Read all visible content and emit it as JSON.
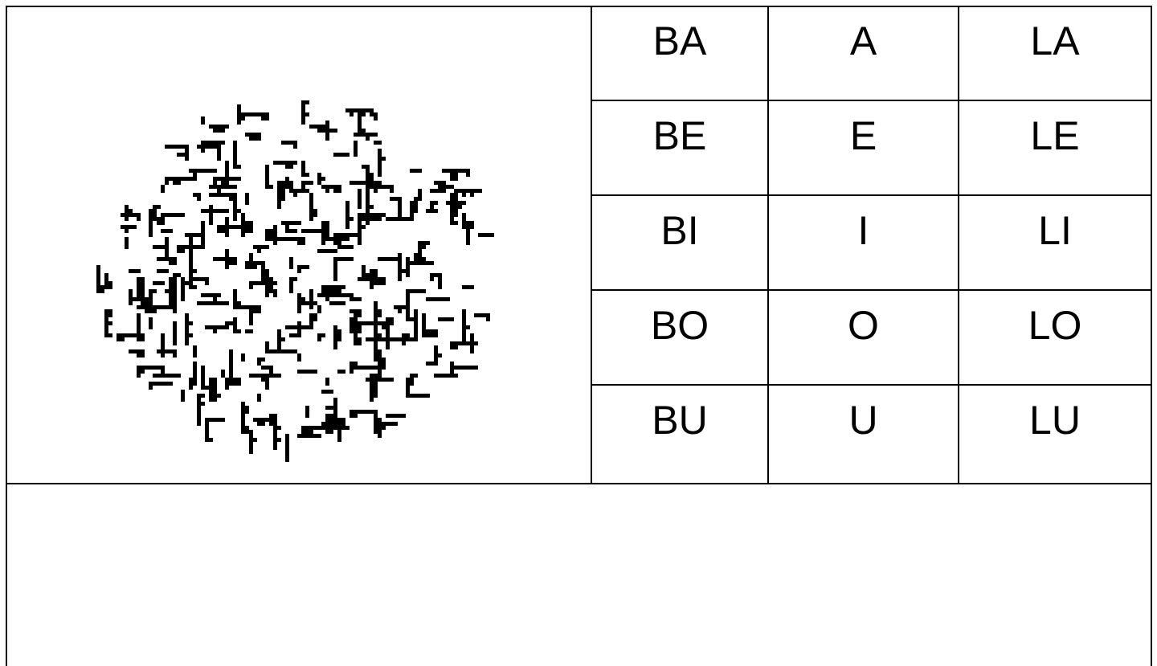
{
  "table": {
    "rows": [
      [
        "BA",
        "A",
        "LA"
      ],
      [
        "BE",
        "E",
        "LE"
      ],
      [
        "BI",
        "I",
        "LI"
      ],
      [
        "BO",
        "O",
        "LO"
      ],
      [
        "BU",
        "U",
        "LU"
      ]
    ]
  }
}
